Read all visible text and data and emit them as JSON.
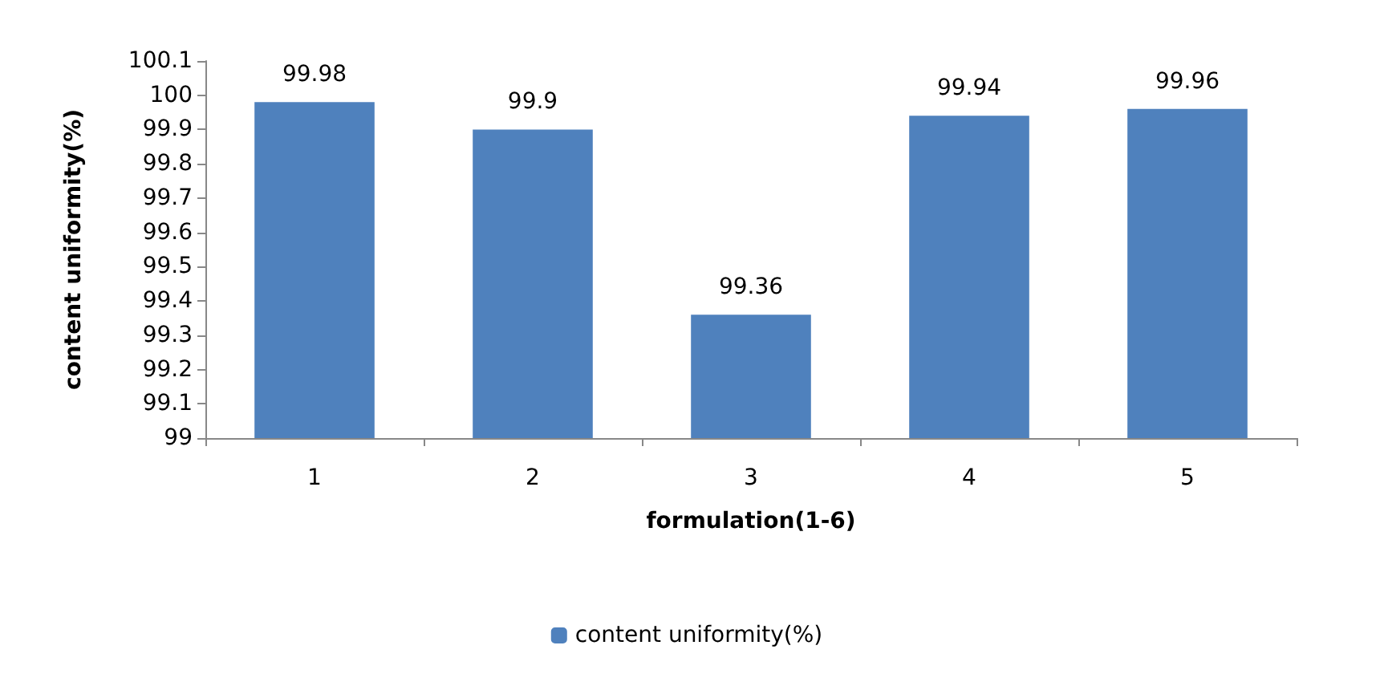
{
  "chart_data": {
    "type": "bar",
    "xlabel": "formulation(1-6)",
    "ylabel": "content uniformity(%)",
    "categories": [
      "1",
      "2",
      "3",
      "4",
      "5"
    ],
    "series": [
      {
        "name": "content uniformity(%)",
        "color": "#4f81bd",
        "values": [
          99.98,
          99.9,
          99.36,
          99.94,
          99.96
        ]
      }
    ],
    "ylim": [
      99,
      100.1
    ],
    "yticks": [
      99,
      99.1,
      99.2,
      99.3,
      99.4,
      99.5,
      99.6,
      99.7,
      99.8,
      99.9,
      100,
      100.1
    ],
    "data_labels": true,
    "grid": false,
    "legend": "bottom"
  }
}
